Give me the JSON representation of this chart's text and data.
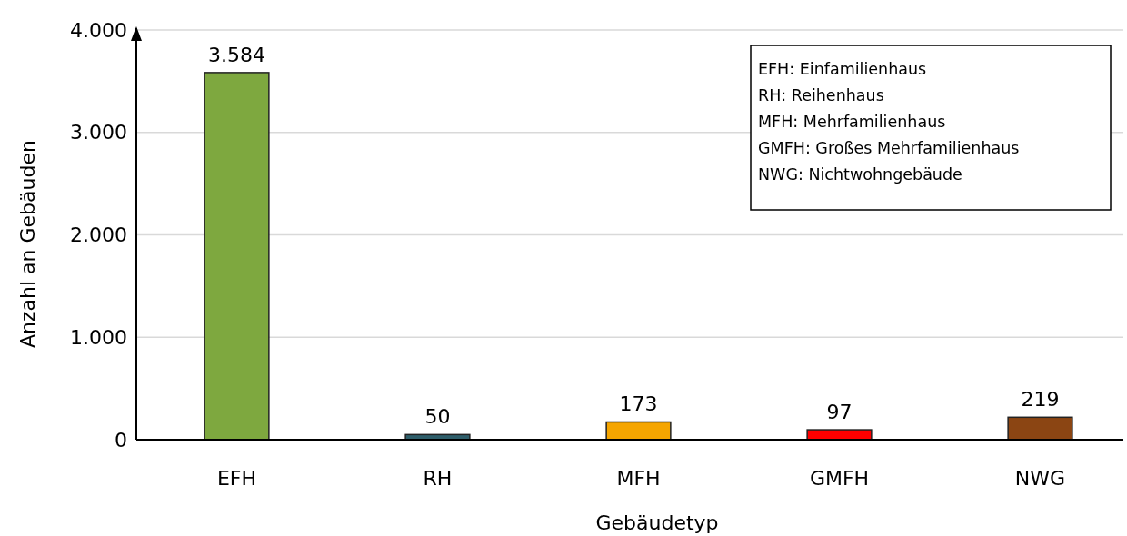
{
  "chart_data": {
    "type": "bar",
    "xlabel": "Gebäudetyp",
    "ylabel": "Anzahl an Gebäuden",
    "categories": [
      "EFH",
      "RH",
      "MFH",
      "GMFH",
      "NWG"
    ],
    "values": [
      3584,
      50,
      173,
      97,
      219
    ],
    "colors": [
      "#7ea83f",
      "#2e5e6a",
      "#f5a500",
      "#ff0000",
      "#8b4513"
    ],
    "value_labels": [
      "3.584",
      "50",
      "173",
      "97",
      "219"
    ],
    "ylim": [
      0,
      4000
    ],
    "yticks": [
      0,
      {
        "value": 1000,
        "label": "1.000"
      },
      {
        "value": 2000,
        "label": "2.000"
      },
      {
        "value": 3000,
        "label": "3.000"
      },
      {
        "value": 4000,
        "label": "4.000"
      }
    ],
    "grid": "y",
    "annotations": [
      "EFH: Einfamilienhaus",
      "RH: Reihenhaus",
      "MFH: Mehrfamilienhaus",
      "GMFH: Großes Mehrfamilienhaus",
      "NWG: Nichtwohngebäude"
    ]
  }
}
